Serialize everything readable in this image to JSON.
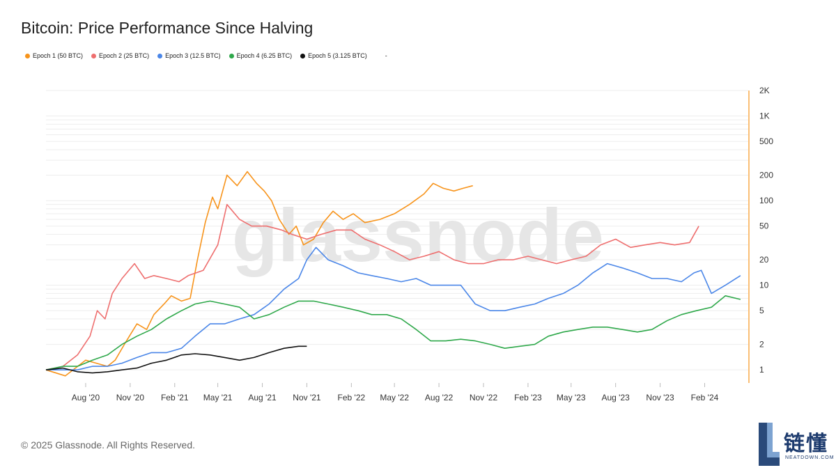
{
  "title": "Bitcoin: Price Performance Since Halving",
  "footer": "© 2025 Glassnode. All Rights Reserved.",
  "watermark": "glassnode",
  "brand": {
    "cn": "链懂",
    "en": "NEATDOWN.COM"
  },
  "legend": [
    {
      "label": "Epoch 1 (50 BTC)",
      "color": "#f7931a"
    },
    {
      "label": "Epoch 2 (25 BTC)",
      "color": "#ee6e6e"
    },
    {
      "label": "Epoch 3 (12.5 BTC)",
      "color": "#4a86e8"
    },
    {
      "label": "Epoch 4 (6.25 BTC)",
      "color": "#2ea84a"
    },
    {
      "label": "Epoch 5 (3.125 BTC)",
      "color": "#111111"
    }
  ],
  "legend_extra": "-",
  "chart_data": {
    "type": "line",
    "title": "Bitcoin: Price Performance Since Halving",
    "y_scale": "log",
    "ylim": [
      0.7,
      2000
    ],
    "x_ticks": [
      "Aug '20",
      "Nov '20",
      "Feb '21",
      "May '21",
      "Aug '21",
      "Nov '21",
      "Feb '22",
      "May '22",
      "Aug '22",
      "Nov '22",
      "Feb '23",
      "May '23",
      "Aug '23",
      "Nov '23",
      "Feb '24"
    ],
    "y_ticks": [
      "1",
      "2",
      "5",
      "10",
      "20",
      "50",
      "100",
      "200",
      "500",
      "1K",
      "2K"
    ],
    "y_tick_values": [
      1,
      2,
      5,
      10,
      20,
      50,
      100,
      200,
      500,
      1000,
      2000
    ],
    "xlim": [
      "2020-05-11",
      "2024-05-01"
    ],
    "grid": true,
    "series": [
      {
        "name": "Epoch 1 (50 BTC)",
        "color": "#f7931a",
        "x": [
          "2020-05-11",
          "2020-06-20",
          "2020-08-01",
          "2020-09-15",
          "2020-10-01",
          "2020-10-20",
          "2020-11-15",
          "2020-12-05",
          "2020-12-20",
          "2021-01-10",
          "2021-01-25",
          "2021-02-15",
          "2021-03-05",
          "2021-03-20",
          "2021-04-05",
          "2021-04-20",
          "2021-05-01",
          "2021-05-20",
          "2021-06-10",
          "2021-07-01",
          "2021-07-20",
          "2021-08-05",
          "2021-08-20",
          "2021-09-05",
          "2021-09-25",
          "2021-10-10",
          "2021-10-25",
          "2021-11-15",
          "2021-12-05",
          "2021-12-25",
          "2022-01-15",
          "2022-02-05",
          "2022-03-01",
          "2022-04-01",
          "2022-05-01",
          "2022-06-01",
          "2022-07-01",
          "2022-07-20",
          "2022-08-10",
          "2022-09-01",
          "2022-09-20",
          "2022-10-10"
        ],
        "y": [
          1.0,
          0.85,
          1.3,
          1.1,
          1.3,
          2.0,
          3.5,
          3.0,
          4.5,
          6.0,
          7.5,
          6.5,
          7.0,
          20,
          55,
          110,
          80,
          200,
          150,
          220,
          160,
          130,
          100,
          60,
          40,
          50,
          30,
          35,
          55,
          75,
          60,
          70,
          55,
          60,
          70,
          90,
          120,
          160,
          140,
          130,
          140,
          150
        ]
      },
      {
        "name": "Epoch 2 (25 BTC)",
        "color": "#ee6e6e",
        "x": [
          "2020-05-11",
          "2020-06-15",
          "2020-07-15",
          "2020-08-10",
          "2020-08-25",
          "2020-09-10",
          "2020-09-25",
          "2020-10-15",
          "2020-11-10",
          "2020-12-01",
          "2020-12-20",
          "2021-01-15",
          "2021-02-10",
          "2021-03-01",
          "2021-04-01",
          "2021-05-01",
          "2021-05-20",
          "2021-06-15",
          "2021-07-10",
          "2021-08-10",
          "2021-09-10",
          "2021-10-01",
          "2021-11-01",
          "2021-12-01",
          "2022-01-01",
          "2022-02-01",
          "2022-03-01",
          "2022-04-01",
          "2022-05-01",
          "2022-06-01",
          "2022-07-01",
          "2022-08-01",
          "2022-09-01",
          "2022-10-01",
          "2022-11-01",
          "2022-12-01",
          "2023-01-01",
          "2023-02-01",
          "2023-03-01",
          "2023-04-01",
          "2023-05-01",
          "2023-06-01",
          "2023-07-01",
          "2023-08-01",
          "2023-09-01",
          "2023-10-01",
          "2023-11-01",
          "2023-12-01",
          "2024-01-01",
          "2024-01-20"
        ],
        "y": [
          1.0,
          1.1,
          1.5,
          2.5,
          5,
          4,
          8,
          12,
          18,
          12,
          13,
          12,
          11,
          13,
          15,
          30,
          90,
          60,
          50,
          50,
          45,
          40,
          35,
          40,
          45,
          45,
          35,
          30,
          25,
          20,
          22,
          25,
          20,
          18,
          18,
          20,
          20,
          22,
          20,
          18,
          20,
          22,
          30,
          35,
          28,
          30,
          32,
          30,
          32,
          50
        ]
      },
      {
        "name": "Epoch 3 (12.5 BTC)",
        "color": "#4a86e8",
        "x": [
          "2020-05-11",
          "2020-06-15",
          "2020-07-15",
          "2020-08-15",
          "2020-09-15",
          "2020-10-15",
          "2020-11-15",
          "2020-12-15",
          "2021-01-15",
          "2021-02-15",
          "2021-03-15",
          "2021-04-15",
          "2021-05-15",
          "2021-06-15",
          "2021-07-15",
          "2021-08-15",
          "2021-09-15",
          "2021-10-15",
          "2021-11-01",
          "2021-11-20",
          "2021-12-15",
          "2022-01-15",
          "2022-02-15",
          "2022-03-15",
          "2022-04-15",
          "2022-05-15",
          "2022-06-15",
          "2022-07-15",
          "2022-08-15",
          "2022-09-15",
          "2022-10-15",
          "2022-11-15",
          "2022-12-15",
          "2023-01-15",
          "2023-02-15",
          "2023-03-15",
          "2023-04-15",
          "2023-05-15",
          "2023-06-15",
          "2023-07-15",
          "2023-08-15",
          "2023-09-15",
          "2023-10-15",
          "2023-11-15",
          "2023-12-15",
          "2024-01-10",
          "2024-01-25",
          "2024-02-15",
          "2024-03-15",
          "2024-04-15"
        ],
        "y": [
          1.0,
          1.0,
          1.0,
          1.1,
          1.1,
          1.2,
          1.4,
          1.6,
          1.6,
          1.8,
          2.5,
          3.5,
          3.5,
          4.0,
          4.5,
          6,
          9,
          12,
          20,
          28,
          20,
          17,
          14,
          13,
          12,
          11,
          12,
          10,
          10,
          10,
          6,
          5,
          5,
          5.5,
          6,
          7,
          8,
          10,
          14,
          18,
          16,
          14,
          12,
          12,
          11,
          14,
          15,
          8,
          10,
          13
        ]
      },
      {
        "name": "Epoch 4 (6.25 BTC)",
        "color": "#2ea84a",
        "x": [
          "2020-05-11",
          "2020-06-15",
          "2020-07-15",
          "2020-08-15",
          "2020-09-15",
          "2020-10-15",
          "2020-11-15",
          "2020-12-15",
          "2021-01-15",
          "2021-02-15",
          "2021-03-15",
          "2021-04-15",
          "2021-05-15",
          "2021-06-15",
          "2021-07-15",
          "2021-08-15",
          "2021-09-15",
          "2021-10-15",
          "2021-11-15",
          "2021-12-15",
          "2022-01-15",
          "2022-02-15",
          "2022-03-15",
          "2022-04-15",
          "2022-05-15",
          "2022-06-15",
          "2022-07-15",
          "2022-08-15",
          "2022-09-15",
          "2022-10-15",
          "2022-11-15",
          "2022-12-15",
          "2023-01-15",
          "2023-02-15",
          "2023-03-15",
          "2023-04-15",
          "2023-05-15",
          "2023-06-15",
          "2023-07-15",
          "2023-08-15",
          "2023-09-15",
          "2023-10-15",
          "2023-11-15",
          "2023-12-15",
          "2024-01-15",
          "2024-02-15",
          "2024-03-15",
          "2024-04-15"
        ],
        "y": [
          1.0,
          1.1,
          1.1,
          1.3,
          1.5,
          2.0,
          2.5,
          3.0,
          4.0,
          5.0,
          6.0,
          6.5,
          6.0,
          5.5,
          4.0,
          4.5,
          5.5,
          6.5,
          6.5,
          6.0,
          5.5,
          5.0,
          4.5,
          4.5,
          4.0,
          3.0,
          2.2,
          2.2,
          2.3,
          2.2,
          2.0,
          1.8,
          1.9,
          2.0,
          2.5,
          2.8,
          3.0,
          3.2,
          3.2,
          3.0,
          2.8,
          3.0,
          3.8,
          4.5,
          5.0,
          5.5,
          7.5,
          6.8
        ]
      },
      {
        "name": "Epoch 5 (3.125 BTC)",
        "color": "#111111",
        "x": [
          "2020-05-11",
          "2020-06-15",
          "2020-07-15",
          "2020-08-15",
          "2020-09-15",
          "2020-10-15",
          "2020-11-15",
          "2020-12-15",
          "2021-01-15",
          "2021-02-15",
          "2021-03-15",
          "2021-04-15",
          "2021-05-15",
          "2021-06-15",
          "2021-07-15",
          "2021-08-15",
          "2021-09-15",
          "2021-10-15",
          "2021-11-01"
        ],
        "y": [
          1.0,
          1.05,
          0.95,
          0.92,
          0.95,
          1.0,
          1.05,
          1.2,
          1.3,
          1.5,
          1.55,
          1.5,
          1.4,
          1.3,
          1.4,
          1.6,
          1.8,
          1.9,
          1.9
        ]
      }
    ]
  }
}
